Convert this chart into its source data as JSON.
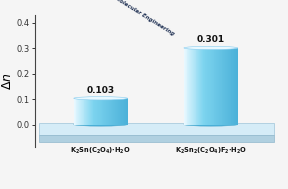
{
  "categories": [
    "$K_2Sn(C_2O_4)\\cdot H_2O$",
    "$K_2Sn_2(C_2O_4)F_2\\cdot H_2O$"
  ],
  "values": [
    0.103,
    0.301
  ],
  "ylabel": "$\\Delta n$",
  "ylim": [
    0.0,
    0.4
  ],
  "yticks": [
    0.0,
    0.1,
    0.2,
    0.3,
    0.4
  ],
  "bar_positions": [
    0.27,
    0.72
  ],
  "bar_width": 0.22,
  "arrow_text": "Rational Molecular Engineering",
  "value_labels": [
    "0.103",
    "0.301"
  ],
  "bg_color": "#f5f5f5",
  "floor_top_color": "#d8eef8",
  "floor_side_color": "#b8d8e8",
  "cyl_highlight": "#e8f8ff",
  "cyl_mid": "#7dd4ef",
  "cyl_dark": "#4ab0d8",
  "cyl_top_color": "#b0e8f8",
  "arrow_color": "#40d0e0"
}
